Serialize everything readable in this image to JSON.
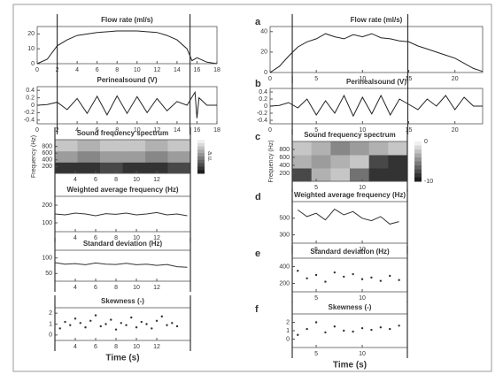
{
  "chart_data": [
    {
      "type": "line",
      "title": "Flow rate (ml/s)",
      "x": [
        0,
        1,
        2,
        3,
        4,
        6,
        8,
        10,
        12,
        13,
        14,
        15,
        15.5,
        16,
        17,
        18
      ],
      "values": [
        0,
        3,
        12,
        16,
        19,
        21,
        22,
        22,
        21,
        19,
        16,
        10,
        2,
        4,
        1,
        0
      ],
      "xlim": [
        0,
        18
      ],
      "xticks": [
        0,
        2,
        4,
        6,
        8,
        10,
        12,
        14,
        16,
        18
      ],
      "ylim": [
        0,
        25
      ],
      "yticks": [
        0,
        10,
        20
      ],
      "vlines": [
        2,
        15.3
      ],
      "color": "#222222"
    },
    {
      "type": "line",
      "title": "Perinealsound (V)",
      "x": [
        0,
        1,
        2,
        3,
        4,
        5,
        6,
        7,
        8,
        9,
        10,
        11,
        12,
        13,
        14,
        15,
        15.8,
        16,
        16.2,
        17,
        18
      ],
      "values": [
        0,
        0.02,
        0.08,
        -0.12,
        0.18,
        -0.22,
        0.24,
        -0.26,
        0.25,
        -0.22,
        0.23,
        -0.2,
        0.18,
        -0.15,
        0.1,
        0,
        0.35,
        -0.35,
        0.2,
        0,
        0
      ],
      "xlim": [
        0,
        18
      ],
      "xticks": [
        0,
        2,
        4,
        6,
        8,
        10,
        12,
        14,
        16,
        18
      ],
      "ylim": [
        -0.5,
        0.5
      ],
      "yticks": [
        -0.4,
        -0.2,
        0,
        0.2,
        0.4
      ],
      "vlines": [
        2,
        15.3
      ],
      "color": "#222222"
    },
    {
      "type": "heatmap",
      "title": "Sound frequency spectrum",
      "ylabel": "Frequency (Hz)",
      "xlim": [
        2,
        15.3
      ],
      "xticks": [
        4,
        6,
        8,
        10,
        12
      ],
      "ylim": [
        0,
        1000
      ],
      "yticks": [
        200,
        400,
        600,
        800
      ],
      "z": [
        [
          -9,
          -9,
          -8,
          -9,
          -9,
          -8
        ],
        [
          -4,
          -5,
          -4,
          -4,
          -5,
          -4
        ],
        [
          -2,
          -3,
          -2,
          -2,
          -3,
          -2
        ]
      ],
      "zlim": [
        -10,
        0
      ],
      "colorbar_label": "a.u.",
      "vlines": [
        2,
        15.3
      ]
    },
    {
      "type": "line",
      "title": "Weighted average frequency (Hz)",
      "x": [
        2,
        3,
        4,
        5,
        6,
        7,
        8,
        9,
        10,
        11,
        12,
        13,
        14,
        15
      ],
      "values": [
        150,
        145,
        155,
        150,
        140,
        152,
        148,
        155,
        145,
        150,
        158,
        145,
        150,
        140
      ],
      "xlim": [
        2,
        15.3
      ],
      "xticks": [
        4,
        6,
        8,
        10,
        12
      ],
      "ylim": [
        50,
        250
      ],
      "yticks": [
        100,
        200
      ],
      "vlines": [
        2,
        15.3
      ],
      "color": "#333333"
    },
    {
      "type": "line",
      "title": "Standard deviation (Hz)",
      "x": [
        2,
        3,
        4,
        5,
        6,
        7,
        8,
        9,
        10,
        11,
        12,
        13,
        14,
        15
      ],
      "values": [
        85,
        80,
        82,
        78,
        84,
        80,
        79,
        83,
        78,
        80,
        76,
        79,
        72,
        70
      ],
      "xlim": [
        2,
        15.3
      ],
      "xticks": [
        4,
        6,
        8,
        10,
        12
      ],
      "ylim": [
        25,
        125
      ],
      "yticks": [
        50,
        100
      ],
      "vlines": [
        2,
        15.3
      ],
      "color": "#333333"
    },
    {
      "type": "scatter",
      "title": "Skewness (-)",
      "xlabel": "Time (s)",
      "x": [
        2.5,
        3,
        3.5,
        4,
        4.5,
        5,
        5.5,
        6,
        6.5,
        7,
        7.5,
        8,
        8.5,
        9,
        9.5,
        10,
        10.5,
        11,
        11.5,
        12,
        12.5,
        13,
        13.5,
        14
      ],
      "values": [
        0.6,
        1.2,
        0.9,
        1.5,
        1.1,
        0.7,
        1.3,
        1.8,
        0.8,
        1.0,
        1.4,
        0.5,
        1.1,
        0.9,
        1.6,
        0.7,
        1.2,
        1.0,
        0.6,
        1.3,
        1.7,
        0.9,
        1.1,
        0.8
      ],
      "xlim": [
        2,
        15.3
      ],
      "xticks": [
        4,
        6,
        8,
        10,
        12
      ],
      "ylim": [
        -0.5,
        2.5
      ],
      "yticks": [
        0,
        1,
        2
      ],
      "vlines": [
        2,
        15.3
      ],
      "color": "#333333"
    },
    {
      "type": "line",
      "label": "a",
      "title": "Flow rate (ml/s)",
      "x": [
        0,
        1,
        2,
        3,
        4,
        5,
        6,
        7,
        8,
        9,
        10,
        11,
        12,
        13,
        14,
        15,
        16,
        17,
        18,
        19,
        20,
        21,
        22,
        23
      ],
      "values": [
        0,
        6,
        16,
        25,
        30,
        33,
        38,
        35,
        33,
        37,
        35,
        38,
        34,
        33,
        31,
        30,
        26,
        23,
        20,
        17,
        14,
        9,
        4,
        1
      ],
      "xlim": [
        0,
        23
      ],
      "xticks": [
        0,
        5,
        10,
        15,
        20
      ],
      "ylim": [
        0,
        45
      ],
      "yticks": [
        0,
        20,
        40
      ],
      "vlines": [
        2.4,
        14.9
      ],
      "color": "#222222"
    },
    {
      "type": "line",
      "label": "b",
      "title": "Perinealsound (V)",
      "x": [
        0,
        1,
        2,
        3,
        4,
        5,
        6,
        7,
        8,
        9,
        10,
        11,
        12,
        13,
        14,
        15,
        16,
        17,
        18,
        19,
        20,
        21,
        22,
        23
      ],
      "values": [
        0,
        0.02,
        0.1,
        -0.05,
        0.2,
        -0.25,
        0.15,
        -0.2,
        0.3,
        -0.28,
        0.25,
        -0.22,
        0.3,
        -0.25,
        0.2,
        0.05,
        -0.1,
        0.2,
        0,
        0.3,
        -0.1,
        0.25,
        0,
        0
      ],
      "xlim": [
        0,
        23
      ],
      "xticks": [
        0,
        5,
        10,
        15,
        20
      ],
      "ylim": [
        -0.5,
        0.5
      ],
      "yticks": [
        -0.4,
        -0.2,
        0,
        0.2,
        0.4
      ],
      "vlines": [
        2.4,
        14.9
      ],
      "color": "#222222"
    },
    {
      "type": "heatmap",
      "label": "c",
      "title": "Sound frequency spectrum",
      "ylabel": "Frequency (Hz)",
      "xlim": [
        2.4,
        14.9
      ],
      "xticks": [
        5,
        10
      ],
      "ylim": [
        0,
        1000
      ],
      "yticks": [
        200,
        400,
        600,
        800
      ],
      "z": [
        [
          -8,
          -3,
          -2,
          -6,
          -9,
          -9
        ],
        [
          -3,
          -4,
          -3,
          -2,
          -8,
          -9
        ],
        [
          -2,
          -3,
          -5,
          -4,
          -3,
          -2
        ]
      ],
      "zlim": [
        -10,
        0
      ],
      "cbticks": [
        0,
        -10
      ],
      "vlines": [
        2.4,
        14.9
      ]
    },
    {
      "type": "line",
      "label": "d",
      "title": "Weighted average frequency (Hz)",
      "x": [
        3,
        4,
        5,
        6,
        7,
        8,
        9,
        10,
        11,
        12,
        13,
        14
      ],
      "values": [
        600,
        520,
        560,
        480,
        610,
        540,
        580,
        500,
        470,
        520,
        430,
        460
      ],
      "xlim": [
        2.4,
        14.9
      ],
      "xticks": [
        5,
        10
      ],
      "ylim": [
        200,
        700
      ],
      "yticks": [
        300,
        500
      ],
      "vlines": [
        2.4,
        14.9
      ],
      "color": "#333333"
    },
    {
      "type": "scatter",
      "label": "e",
      "title": "Standard deviation (Hz)",
      "x": [
        3,
        4,
        5,
        6,
        7,
        8,
        9,
        10,
        11,
        12,
        13,
        14
      ],
      "values": [
        350,
        260,
        300,
        220,
        330,
        280,
        310,
        250,
        270,
        230,
        290,
        240
      ],
      "xlim": [
        2.4,
        14.9
      ],
      "xticks": [
        5,
        10
      ],
      "ylim": [
        100,
        500
      ],
      "yticks": [
        200,
        400
      ],
      "vlines": [
        2.4,
        14.9
      ],
      "color": "#333333"
    },
    {
      "type": "scatter",
      "label": "f",
      "title": "Skewness (-)",
      "xlabel": "Time (s)",
      "x": [
        3,
        4,
        5,
        6,
        7,
        8,
        9,
        10,
        11,
        12,
        13,
        14
      ],
      "values": [
        0.5,
        1.2,
        2.0,
        0.8,
        1.5,
        1.0,
        0.9,
        1.3,
        1.1,
        1.4,
        1.2,
        1.6
      ],
      "xlim": [
        2.4,
        14.9
      ],
      "xticks": [
        5,
        10
      ],
      "ylim": [
        -1,
        3
      ],
      "yticks": [
        0,
        1,
        2
      ],
      "vlines": [
        2.4,
        14.9
      ],
      "color": "#333333"
    }
  ]
}
